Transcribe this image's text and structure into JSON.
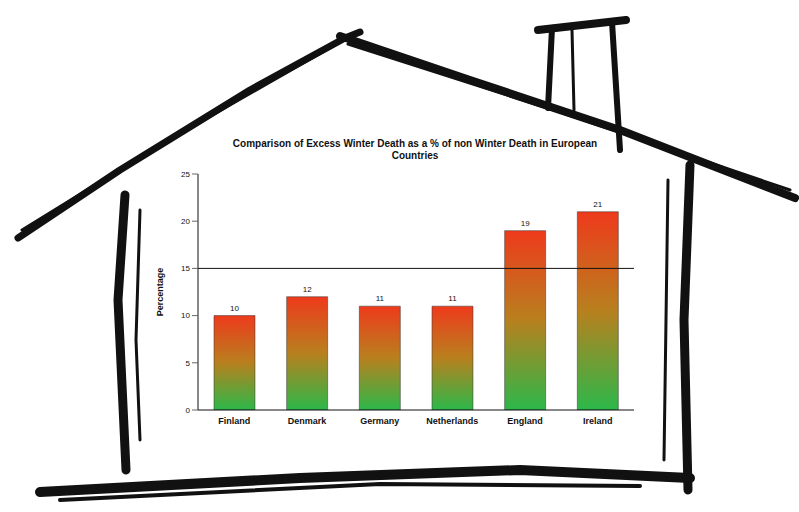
{
  "chart_data": {
    "type": "bar",
    "title": "Comparison of Excess Winter Death as a % of non Winter Death in European Countries",
    "ylabel": "Percentage",
    "categories": [
      "Finland",
      "Denmark",
      "Germany",
      "Netherlands",
      "England",
      "Ireland"
    ],
    "values": [
      10,
      12,
      11,
      11,
      19,
      21
    ],
    "color": "#ee3a1c",
    "ylim": [
      0,
      25
    ],
    "yticks": [
      0,
      5,
      10,
      15,
      20,
      25
    ],
    "grid": false,
    "data_labels": true,
    "reference_line": 15
  }
}
